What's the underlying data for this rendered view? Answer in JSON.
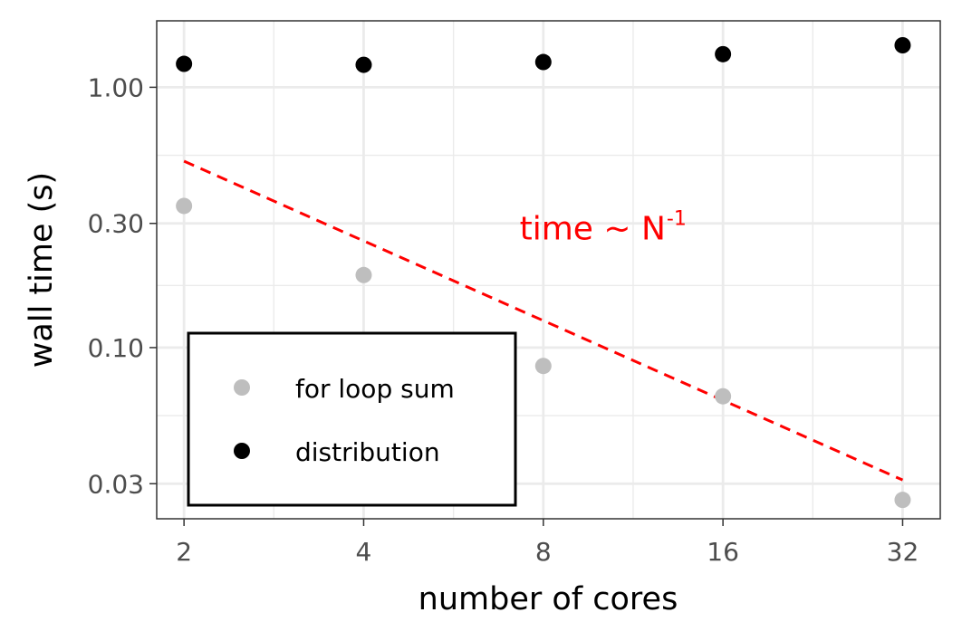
{
  "chart_data": {
    "type": "scatter",
    "xlabel": "number of cores",
    "ylabel": "wall time (s)",
    "x_scale": "log2",
    "y_scale": "log10",
    "x_ticks": [
      2,
      4,
      8,
      16,
      32
    ],
    "x_tick_labels": [
      "2",
      "4",
      "8",
      "16",
      "32"
    ],
    "y_ticks": [
      0.03,
      0.1,
      0.3,
      1.0
    ],
    "y_tick_labels": [
      "0.03",
      "0.10",
      "0.30",
      "1.00"
    ],
    "xlim": [
      1.8,
      37
    ],
    "ylim": [
      0.022,
      1.8
    ],
    "grid": true,
    "legend_position": "bottom-left",
    "series": [
      {
        "name": "for loop sum",
        "color": "#bebebe",
        "x": [
          2,
          4,
          8,
          16,
          32
        ],
        "y": [
          0.35,
          0.19,
          0.085,
          0.065,
          0.026
        ]
      },
      {
        "name": "distribution",
        "color": "#000000",
        "x": [
          2,
          4,
          8,
          16,
          32
        ],
        "y": [
          1.23,
          1.22,
          1.25,
          1.34,
          1.45
        ]
      }
    ],
    "reference_line": {
      "color": "#ff0000",
      "style": "dashed",
      "x": [
        2,
        32
      ],
      "y": [
        0.52,
        0.031
      ]
    },
    "annotation": {
      "text": "time ~ N",
      "superscript": "-1",
      "color": "#ff0000",
      "x": 7.3,
      "y": 0.26
    }
  }
}
